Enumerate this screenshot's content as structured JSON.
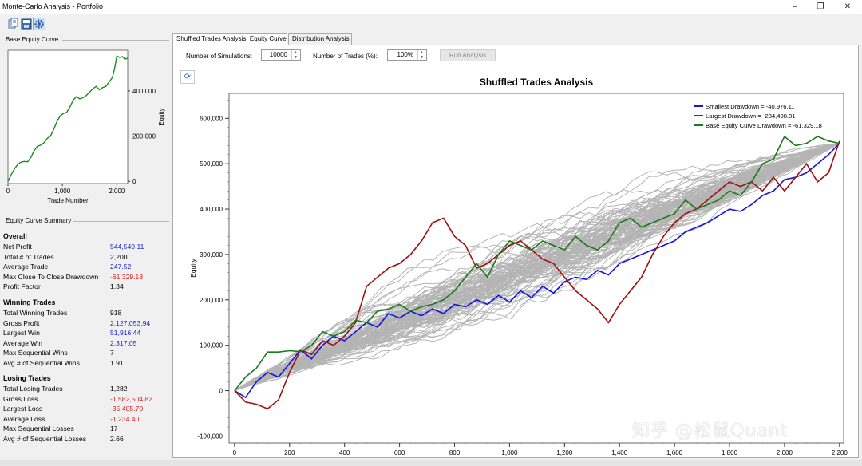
{
  "window": {
    "title": "Monte-Carlo Analysis - Portfolio",
    "minimize": "–",
    "restore": "❐",
    "close": "✕"
  },
  "toolbar": {
    "open_icon": "open-file-icon",
    "save_icon": "save-icon",
    "settings_icon": "gear-icon"
  },
  "base_equity": {
    "label": "Base Equity Curve",
    "chart_data": {
      "type": "line",
      "title": "",
      "xlabel": "Trade Number",
      "ylabel": "Equity",
      "xticks": [
        "0",
        "1,000",
        "2,000"
      ],
      "yticks": [
        "0",
        "200,000",
        "400,000"
      ],
      "xlim": [
        0,
        2200
      ],
      "ylim": [
        -10000,
        580000
      ],
      "series": [
        {
          "name": "Base Equity",
          "color": "#1a8a1a",
          "x": [
            0,
            60,
            120,
            180,
            240,
            300,
            360,
            420,
            480,
            540,
            600,
            660,
            720,
            780,
            840,
            900,
            960,
            1020,
            1080,
            1140,
            1200,
            1260,
            1320,
            1380,
            1440,
            1500,
            1560,
            1620,
            1680,
            1740,
            1800,
            1860,
            1920,
            1960,
            2000,
            2050,
            2100,
            2150,
            2200
          ],
          "values": [
            0,
            30000,
            55000,
            75000,
            85000,
            88000,
            86000,
            105000,
            135000,
            155000,
            160000,
            170000,
            190000,
            200000,
            230000,
            265000,
            290000,
            300000,
            305000,
            330000,
            360000,
            375000,
            365000,
            370000,
            380000,
            395000,
            410000,
            420000,
            405000,
            415000,
            420000,
            440000,
            460000,
            500000,
            555000,
            548000,
            552000,
            540000,
            545000
          ]
        }
      ]
    }
  },
  "summary": {
    "label": "Equity Curve Summary",
    "overall": {
      "heading": "Overall",
      "rows": [
        {
          "label": "Net Profit",
          "value": "544,549.11",
          "color": "blue"
        },
        {
          "label": "Total # of Trades",
          "value": "2,200",
          "color": "black"
        },
        {
          "label": "Average Trade",
          "value": "247.52",
          "color": "blue"
        },
        {
          "label": "Max Close To Close Drawdown",
          "value": "-61,329.18",
          "color": "red"
        },
        {
          "label": "Profit Factor",
          "value": "1.34",
          "color": "black"
        }
      ]
    },
    "winning": {
      "heading": "Winning Trades",
      "rows": [
        {
          "label": "Total Winning Trades",
          "value": "918",
          "color": "black"
        },
        {
          "label": "Gross Profit",
          "value": "2,127,053.94",
          "color": "blue"
        },
        {
          "label": "Largest Win",
          "value": "51,916.44",
          "color": "blue"
        },
        {
          "label": "Average Win",
          "value": "2,317.05",
          "color": "blue"
        },
        {
          "label": "Max Sequential Wins",
          "value": "7",
          "color": "black"
        },
        {
          "label": "Avg # of Sequential Wins",
          "value": "1.91",
          "color": "black"
        }
      ]
    },
    "losing": {
      "heading": "Losing Trades",
      "rows": [
        {
          "label": "Total Losing Trades",
          "value": "1,282",
          "color": "black"
        },
        {
          "label": "Gross Loss",
          "value": "-1,582,504.82",
          "color": "red"
        },
        {
          "label": "Largest Loss",
          "value": "-35,405.70",
          "color": "red"
        },
        {
          "label": "Average Loss",
          "value": "-1,234.40",
          "color": "red"
        },
        {
          "label": "Max Sequential Losses",
          "value": "17",
          "color": "black"
        },
        {
          "label": "Avg # of Sequential Losses",
          "value": "2.66",
          "color": "black"
        }
      ]
    }
  },
  "tabs": [
    {
      "label": "Shuffled Trades Analysis: Equity Curve",
      "active": true
    },
    {
      "label": "Distribution Analysis",
      "active": false
    }
  ],
  "controls": {
    "num_sims_label": "Number of Simulations:",
    "num_sims_value": "10000",
    "num_trades_label": "Number of Trades (%):",
    "num_trades_value": "100%",
    "run_label": "Run Analysis",
    "refresh_icon": "refresh-icon"
  },
  "watermark": "知乎 @松鼠Quant",
  "chart_data": {
    "type": "line",
    "title": "Shuffled Trades Analysis",
    "xlabel": "Trade Number",
    "ylabel": "Equity",
    "xlim": [
      -20,
      2215
    ],
    "ylim": [
      -115000,
      655000
    ],
    "xticks": [
      "0",
      "200",
      "400",
      "600",
      "800",
      "1,000",
      "1,200",
      "1,400",
      "1,600",
      "1,800",
      "2,000",
      "2,200"
    ],
    "xtick_values": [
      0,
      200,
      400,
      600,
      800,
      1000,
      1200,
      1400,
      1600,
      1800,
      2000,
      2200
    ],
    "yticks": [
      "-100,000",
      "0",
      "100,000",
      "200,000",
      "300,000",
      "400,000",
      "500,000",
      "600,000"
    ],
    "ytick_values": [
      -100000,
      0,
      100000,
      200000,
      300000,
      400000,
      500000,
      600000
    ],
    "legend_position": "top-right",
    "simulation_count_drawn": 100,
    "series": [
      {
        "name": "Smallest Drawdown = -40,976.11",
        "color": "#1414e0",
        "x": [
          0,
          40,
          80,
          120,
          160,
          200,
          240,
          280,
          320,
          360,
          400,
          440,
          480,
          520,
          560,
          600,
          640,
          680,
          720,
          760,
          800,
          840,
          880,
          920,
          960,
          1000,
          1040,
          1080,
          1120,
          1160,
          1200,
          1240,
          1280,
          1320,
          1360,
          1400,
          1440,
          1480,
          1520,
          1560,
          1600,
          1640,
          1680,
          1720,
          1760,
          1800,
          1840,
          1880,
          1920,
          1960,
          2000,
          2040,
          2080,
          2120,
          2160,
          2200
        ],
        "values": [
          0,
          -15000,
          20000,
          40000,
          30000,
          60000,
          90000,
          70000,
          100000,
          120000,
          110000,
          130000,
          150000,
          140000,
          170000,
          160000,
          175000,
          165000,
          180000,
          170000,
          190000,
          185000,
          200000,
          190000,
          210000,
          195000,
          220000,
          205000,
          230000,
          215000,
          240000,
          250000,
          245000,
          265000,
          255000,
          280000,
          290000,
          300000,
          310000,
          320000,
          330000,
          350000,
          360000,
          370000,
          385000,
          400000,
          395000,
          410000,
          430000,
          440000,
          465000,
          470000,
          480000,
          500000,
          520000,
          545000
        ]
      },
      {
        "name": "Largest Drawdown = -234,498.81",
        "color": "#a01010",
        "x": [
          0,
          40,
          80,
          120,
          160,
          200,
          240,
          280,
          320,
          360,
          400,
          440,
          480,
          520,
          560,
          600,
          640,
          680,
          720,
          760,
          800,
          840,
          880,
          920,
          960,
          1000,
          1040,
          1080,
          1120,
          1160,
          1200,
          1240,
          1280,
          1320,
          1360,
          1400,
          1440,
          1480,
          1520,
          1560,
          1600,
          1640,
          1680,
          1720,
          1760,
          1800,
          1840,
          1880,
          1920,
          1960,
          2000,
          2040,
          2080,
          2120,
          2160,
          2200
        ],
        "values": [
          0,
          -25000,
          -30000,
          -40000,
          -20000,
          40000,
          90000,
          80000,
          110000,
          100000,
          120000,
          150000,
          230000,
          250000,
          270000,
          280000,
          300000,
          330000,
          370000,
          380000,
          340000,
          320000,
          270000,
          280000,
          300000,
          320000,
          330000,
          310000,
          290000,
          280000,
          250000,
          220000,
          200000,
          180000,
          150000,
          190000,
          220000,
          250000,
          300000,
          340000,
          370000,
          390000,
          400000,
          420000,
          440000,
          460000,
          450000,
          460000,
          440000,
          470000,
          440000,
          470000,
          500000,
          460000,
          480000,
          550000
        ]
      },
      {
        "name": "Base Equity Curve Drawdown = -61,329.18",
        "color": "#1a7a1a",
        "x": [
          0,
          40,
          80,
          120,
          160,
          200,
          240,
          280,
          320,
          360,
          400,
          440,
          480,
          520,
          560,
          600,
          640,
          680,
          720,
          760,
          800,
          840,
          880,
          920,
          960,
          1000,
          1040,
          1080,
          1120,
          1160,
          1200,
          1240,
          1280,
          1320,
          1360,
          1400,
          1440,
          1480,
          1520,
          1560,
          1600,
          1640,
          1680,
          1720,
          1760,
          1800,
          1840,
          1880,
          1920,
          1960,
          2000,
          2040,
          2080,
          2120,
          2160,
          2200
        ],
        "values": [
          0,
          30000,
          50000,
          85000,
          85000,
          88000,
          86000,
          100000,
          130000,
          120000,
          130000,
          155000,
          150000,
          175000,
          180000,
          190000,
          175000,
          185000,
          190000,
          200000,
          220000,
          250000,
          280000,
          250000,
          300000,
          330000,
          320000,
          310000,
          330000,
          320000,
          310000,
          340000,
          320000,
          310000,
          330000,
          370000,
          380000,
          360000,
          370000,
          380000,
          390000,
          420000,
          400000,
          410000,
          420000,
          440000,
          430000,
          460000,
          500000,
          510000,
          560000,
          540000,
          545000,
          560000,
          550000,
          545000
        ]
      }
    ]
  }
}
